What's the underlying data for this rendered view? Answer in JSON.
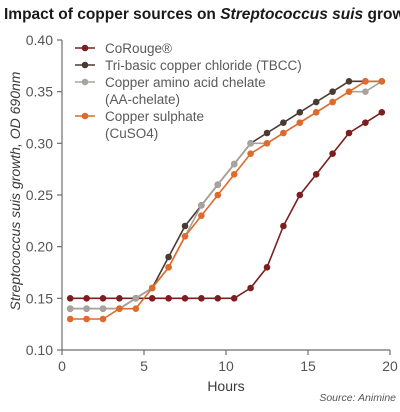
{
  "chart_data": {
    "type": "line",
    "title": "Impact of copper sources on Streptococcus suis growth",
    "title_parts": [
      {
        "text": "Impact of copper sources on ",
        "italic": false
      },
      {
        "text": "Streptococcus suis",
        "italic": true
      },
      {
        "text": " growth",
        "italic": false
      }
    ],
    "xlabel": "Hours",
    "ylabel": "Streptococcus suis growth, OD 690nm",
    "ylabel_parts": [
      {
        "text": "Streptococcus suis",
        "italic": true
      },
      {
        "text": " growth, OD 690nm",
        "italic": false
      }
    ],
    "xlim": [
      0,
      20
    ],
    "ylim": [
      0.1,
      0.4
    ],
    "x_ticks": [
      0,
      5,
      10,
      15,
      20
    ],
    "x_tick_labels": [
      "0",
      "5",
      "10",
      "15",
      "20"
    ],
    "y_ticks": [
      0.1,
      0.15,
      0.2,
      0.25,
      0.3,
      0.35,
      0.4
    ],
    "y_tick_labels": [
      "0.10",
      "0.15",
      "0.20",
      "0.25",
      "0.30",
      "0.35",
      "0.40"
    ],
    "grid": false,
    "legend_position": "top-left",
    "source": "Source: Animine",
    "x": [
      0.5,
      1.5,
      2.5,
      3.5,
      4.5,
      5.5,
      6.5,
      7.5,
      8.5,
      9.5,
      10.5,
      11.5,
      12.5,
      13.5,
      14.5,
      15.5,
      16.5,
      17.5,
      18.5,
      19.5
    ],
    "series": [
      {
        "name": "CoRouge®",
        "legend_lines": [
          "CoRouge®"
        ],
        "color": "#7b1f1f",
        "values": [
          0.15,
          0.15,
          0.15,
          0.15,
          0.15,
          0.15,
          0.15,
          0.15,
          0.15,
          0.15,
          0.15,
          0.16,
          0.18,
          0.22,
          0.25,
          0.27,
          0.29,
          0.31,
          0.32,
          0.33
        ]
      },
      {
        "name": "Tri-basic copper chloride (TBCC)",
        "legend_lines": [
          "Tri-basic copper chloride (TBCC)"
        ],
        "color": "#4a3a32",
        "values": [
          0.14,
          0.14,
          0.14,
          0.14,
          0.15,
          0.16,
          0.19,
          0.22,
          0.24,
          0.26,
          0.28,
          0.3,
          0.31,
          0.32,
          0.33,
          0.34,
          0.35,
          0.36,
          0.36,
          0.36
        ]
      },
      {
        "name": "Copper amino acid chelate (AA-chelate)",
        "legend_lines": [
          "Copper amino acid chelate",
          "(AA-chelate)"
        ],
        "color": "#a8a39c",
        "values": [
          0.14,
          0.14,
          0.14,
          0.14,
          0.15,
          0.16,
          0.18,
          0.21,
          0.24,
          0.26,
          0.28,
          0.3,
          0.3,
          0.31,
          0.32,
          0.33,
          0.34,
          0.35,
          0.35,
          0.36
        ]
      },
      {
        "name": "Copper sulphate (CuSO4)",
        "legend_lines": [
          "Copper sulphate",
          "(CuSO4)"
        ],
        "color": "#e06a2c",
        "values": [
          0.13,
          0.13,
          0.13,
          0.14,
          0.14,
          0.16,
          0.18,
          0.21,
          0.23,
          0.25,
          0.27,
          0.29,
          0.3,
          0.31,
          0.32,
          0.33,
          0.34,
          0.35,
          0.36,
          0.36
        ]
      }
    ]
  }
}
